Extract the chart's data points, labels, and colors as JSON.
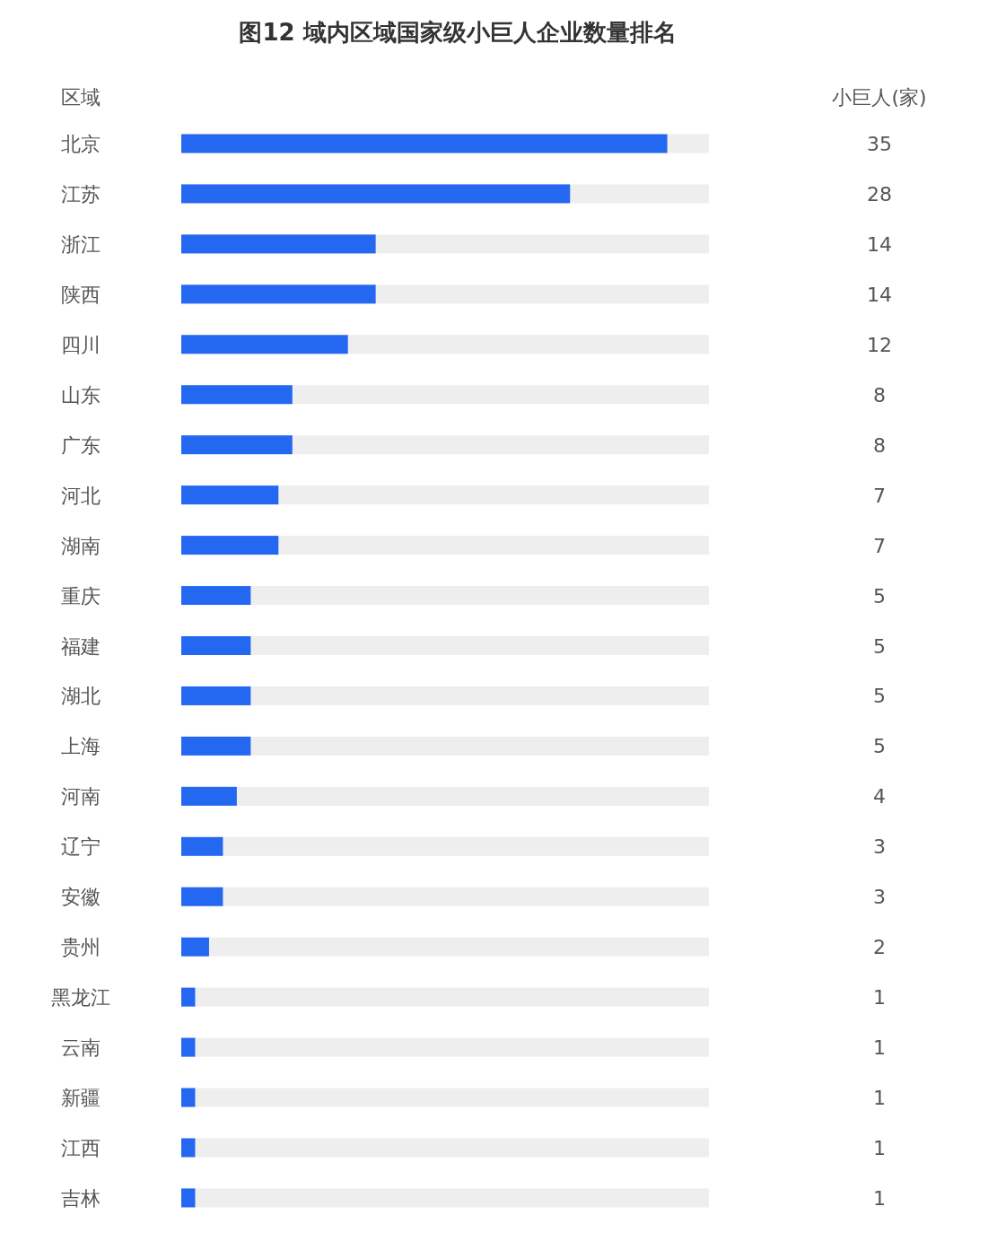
{
  "chart_data": {
    "type": "bar",
    "orientation": "horizontal",
    "title": "图12 域内区域国家级小巨人企业数量排名",
    "ylabel": "区域",
    "annotations": [
      "小巨人(家)"
    ],
    "categories": [
      "北京",
      "江苏",
      "浙江",
      "陕西",
      "四川",
      "山东",
      "广东",
      "河北",
      "湖南",
      "重庆",
      "福建",
      "湖北",
      "上海",
      "河南",
      "辽宁",
      "安徽",
      "贵州",
      "黑龙江",
      "云南",
      "新疆",
      "江西",
      "吉林"
    ],
    "values": [
      35,
      28,
      14,
      14,
      12,
      8,
      8,
      7,
      7,
      5,
      5,
      5,
      5,
      4,
      3,
      3,
      2,
      1,
      1,
      1,
      1,
      1
    ],
    "color": "#2468f2",
    "xlim": [
      0,
      38
    ],
    "data_labels": true
  }
}
